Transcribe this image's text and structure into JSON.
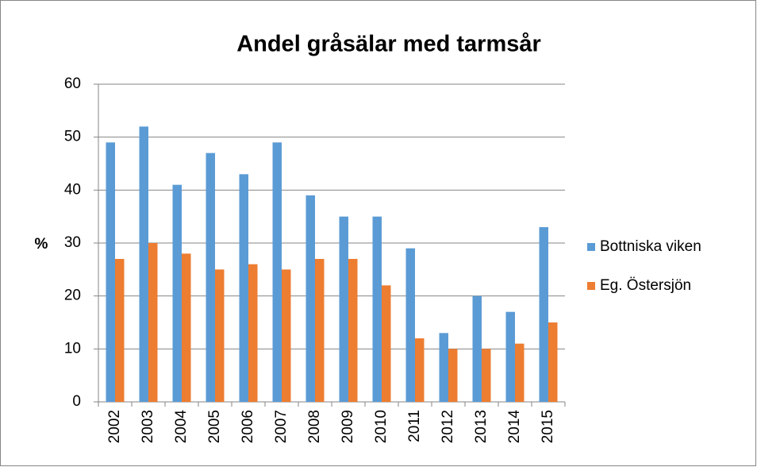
{
  "chart_data": {
    "type": "bar",
    "title": "Andel gråsälar med tarmsår",
    "y_label": "%",
    "categories": [
      "2002",
      "2003",
      "2004",
      "2005",
      "2006",
      "2007",
      "2008",
      "2009",
      "2010",
      "2011",
      "2012",
      "2013",
      "2014",
      "2015"
    ],
    "series": [
      {
        "name": "Bottniska viken",
        "color": "#5b9bd5",
        "values": [
          49,
          52,
          41,
          47,
          43,
          49,
          39,
          35,
          35,
          29,
          13,
          20,
          17,
          33
        ]
      },
      {
        "name": "Eg. Östersjön",
        "color": "#ed7d31",
        "values": [
          27,
          30,
          28,
          25,
          26,
          25,
          27,
          27,
          22,
          12,
          10,
          10,
          11,
          15
        ]
      }
    ],
    "ylim": [
      0,
      60
    ],
    "yticks": [
      0,
      10,
      20,
      30,
      40,
      50,
      60
    ],
    "grid": true,
    "legend": "right"
  }
}
